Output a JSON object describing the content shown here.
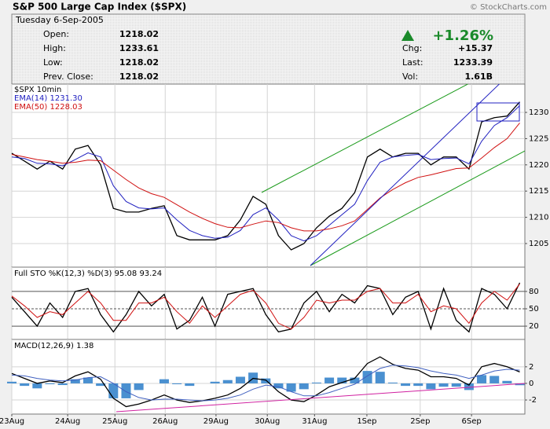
{
  "header": {
    "title": "S&P 500 Large Cap Index ($SPX)",
    "credit": "© StockCharts.com"
  },
  "quote": {
    "date": "Tuesday 6-Sep-2005",
    "rows": [
      [
        "Open:",
        "1218.02"
      ],
      [
        "High:",
        "1233.61"
      ],
      [
        "Low:",
        "1218.02"
      ],
      [
        "Prev. Close:",
        "1218.02"
      ]
    ],
    "change_pct": "+1.26%",
    "stats": [
      [
        "Chg:",
        "+15.37"
      ],
      [
        "Last:",
        "1233.39"
      ],
      [
        "Vol:",
        "1.61B"
      ]
    ]
  },
  "chart_data": [
    {
      "type": "line",
      "x": [
        0,
        0.25,
        0.5,
        0.75,
        1,
        1.25,
        1.5,
        1.75,
        2,
        2.25,
        2.5,
        2.75,
        3,
        3.25,
        3.5,
        3.75,
        4,
        4.25,
        4.5,
        4.75,
        5,
        5.25,
        5.5,
        5.75,
        6,
        6.25,
        6.5,
        6.75,
        7,
        7.25,
        7.5,
        7.75,
        8,
        8.25,
        8.5,
        8.75,
        9,
        9.25,
        9.5,
        9.75,
        10
      ],
      "series": [
        {
          "name": "$SPX 10min",
          "color": "#000000",
          "values": [
            1222.2,
            1220.7,
            1219.2,
            1220.7,
            1219.2,
            1223,
            1223.7,
            1220,
            1211.7,
            1211,
            1211,
            1211.7,
            1212.2,
            1206.5,
            1205.7,
            1205.7,
            1205.7,
            1206.5,
            1209.5,
            1214,
            1212.5,
            1206.5,
            1203.8,
            1205,
            1208,
            1210.2,
            1211.7,
            1214.7,
            1221.5,
            1223,
            1221.5,
            1222.2,
            1222.2,
            1220,
            1221.5,
            1221.5,
            1219.2,
            1228.2,
            1229,
            1229.3,
            1232
          ]
        },
        {
          "name": "EMA(14) 1231.30",
          "color": "#2020c0",
          "values": [
            1221.5,
            1221.2,
            1220.3,
            1220.2,
            1219.8,
            1221,
            1222.3,
            1221.5,
            1216,
            1213,
            1211.8,
            1211.6,
            1211.8,
            1209.5,
            1207.5,
            1206.5,
            1206,
            1206.2,
            1207.5,
            1210.5,
            1211.8,
            1209.5,
            1206.5,
            1205.5,
            1206.5,
            1208.5,
            1210.5,
            1212.5,
            1217,
            1220.5,
            1221.5,
            1221.8,
            1222,
            1221,
            1221.2,
            1221.3,
            1220.2,
            1224.5,
            1227.5,
            1229,
            1231.3
          ]
        },
        {
          "name": "EMA(50) 1228.03",
          "color": "#d01010",
          "values": [
            1222,
            1221.5,
            1221,
            1220.7,
            1220.3,
            1220.5,
            1220.9,
            1220.8,
            1219,
            1217.2,
            1215.6,
            1214.5,
            1213.8,
            1212.4,
            1211,
            1209.8,
            1208.8,
            1208.1,
            1208,
            1208.7,
            1209.3,
            1209,
            1208,
            1207.4,
            1207.4,
            1207.8,
            1208.4,
            1209.3,
            1211.5,
            1213.7,
            1215.3,
            1216.6,
            1217.6,
            1218.1,
            1218.7,
            1219.3,
            1219.4,
            1221.3,
            1223.3,
            1225,
            1228
          ]
        }
      ],
      "xlim": [
        0,
        10.1
      ],
      "ylim": [
        1200.5,
        1235.4
      ],
      "yticks": [
        1205,
        1210,
        1215,
        1220,
        1225,
        1230
      ],
      "grid": true
    },
    {
      "type": "line",
      "title": "Full STO %K(12,3) %D(3) 95.08 93.24",
      "x": [
        0,
        0.25,
        0.5,
        0.75,
        1,
        1.25,
        1.5,
        1.75,
        2,
        2.25,
        2.5,
        2.75,
        3,
        3.25,
        3.5,
        3.75,
        4,
        4.25,
        4.5,
        4.75,
        5,
        5.25,
        5.5,
        5.75,
        6,
        6.25,
        6.5,
        6.75,
        7,
        7.25,
        7.5,
        7.75,
        8,
        8.25,
        8.5,
        8.75,
        9,
        9.25,
        9.5,
        9.75,
        10
      ],
      "series": [
        {
          "color": "#000000",
          "values": [
            70,
            45,
            20,
            60,
            35,
            80,
            85,
            40,
            10,
            40,
            80,
            55,
            75,
            15,
            30,
            70,
            20,
            75,
            80,
            85,
            40,
            10,
            15,
            60,
            80,
            45,
            75,
            60,
            90,
            85,
            40,
            70,
            80,
            15,
            85,
            30,
            10,
            85,
            75,
            50,
            95
          ]
        },
        {
          "color": "#d01010",
          "values": [
            72,
            55,
            35,
            45,
            40,
            60,
            80,
            60,
            30,
            30,
            60,
            60,
            70,
            45,
            25,
            55,
            35,
            55,
            75,
            82,
            60,
            25,
            15,
            35,
            65,
            60,
            65,
            65,
            80,
            85,
            60,
            60,
            75,
            45,
            55,
            50,
            25,
            60,
            80,
            65,
            93
          ]
        }
      ],
      "xlim": [
        0,
        10.1
      ],
      "ylim": [
        -3,
        122
      ],
      "yticks": [
        20,
        50,
        80
      ],
      "grid": true
    },
    {
      "type": "line",
      "title": "MACD(12,26,9) 1.38",
      "x": [
        0,
        0.25,
        0.5,
        0.75,
        1,
        1.25,
        1.5,
        1.75,
        2,
        2.25,
        2.5,
        2.75,
        3,
        3.25,
        3.5,
        3.75,
        4,
        4.25,
        4.5,
        4.75,
        5,
        5.25,
        5.5,
        5.75,
        6,
        6.25,
        6.5,
        6.75,
        7,
        7.25,
        7.5,
        7.75,
        8,
        8.25,
        8.5,
        8.75,
        9,
        9.25,
        9.5,
        9.75,
        10
      ],
      "series": [
        {
          "color": "#000000",
          "values": [
            1.2,
            0.6,
            0,
            0.3,
            0.1,
            0.9,
            1.4,
            0.5,
            -1.8,
            -2.8,
            -2.5,
            -2,
            -1.4,
            -2,
            -2.3,
            -2.1,
            -1.8,
            -1.4,
            -0.6,
            0.6,
            0.4,
            -1,
            -2,
            -2.2,
            -1.4,
            -0.4,
            0.1,
            0.6,
            2.4,
            3.2,
            2.3,
            1.8,
            1.6,
            0.8,
            0.8,
            0.6,
            -0.2,
            2,
            2.4,
            2,
            1.38
          ]
        },
        {
          "color": "#4060c0",
          "values": [
            1,
            0.9,
            0.6,
            0.4,
            0.3,
            0.4,
            0.7,
            0.8,
            0,
            -1,
            -1.7,
            -2,
            -1.9,
            -1.9,
            -2,
            -2.1,
            -2,
            -1.8,
            -1.4,
            -0.7,
            -0.2,
            -0.4,
            -1,
            -1.5,
            -1.5,
            -1.1,
            -0.6,
            -0.1,
            0.9,
            1.8,
            2.2,
            2.1,
            1.9,
            1.5,
            1.2,
            1,
            0.6,
            1,
            1.5,
            1.7,
            1.6
          ]
        }
      ],
      "histogram": {
        "color": "#4a90d0",
        "values": [
          0.2,
          -0.3,
          -0.6,
          -0.1,
          -0.2,
          0.5,
          0.7,
          -0.3,
          -1.8,
          -1.8,
          -0.8,
          0,
          0.5,
          -0.1,
          -0.3,
          0,
          0.2,
          0.4,
          0.8,
          1.3,
          0.6,
          -0.6,
          -1,
          -0.7,
          0.1,
          0.7,
          0.7,
          0.7,
          1.5,
          1.4,
          0.1,
          -0.3,
          -0.3,
          -0.7,
          -0.4,
          -0.4,
          -0.8,
          1,
          0.9,
          0.3,
          -0.22
        ]
      },
      "xlim": [
        0,
        10.1
      ],
      "ylim": [
        -3.7,
        5.3
      ],
      "yticks": [
        -2,
        0,
        2
      ],
      "grid": true,
      "xticks": [
        {
          "value": 0,
          "label": "23Aug"
        },
        {
          "value": 1.1,
          "label": "24Aug"
        },
        {
          "value": 2.03,
          "label": "25Aug"
        },
        {
          "value": 3.02,
          "label": "26Aug"
        },
        {
          "value": 4.02,
          "label": "29Aug"
        },
        {
          "value": 5.03,
          "label": "30Aug"
        },
        {
          "value": 5.96,
          "label": "31Aug"
        },
        {
          "value": 6.99,
          "label": "1Sep"
        },
        {
          "value": 8.04,
          "label": "2Sep"
        },
        {
          "value": 9.05,
          "label": "6Sep"
        }
      ]
    }
  ]
}
